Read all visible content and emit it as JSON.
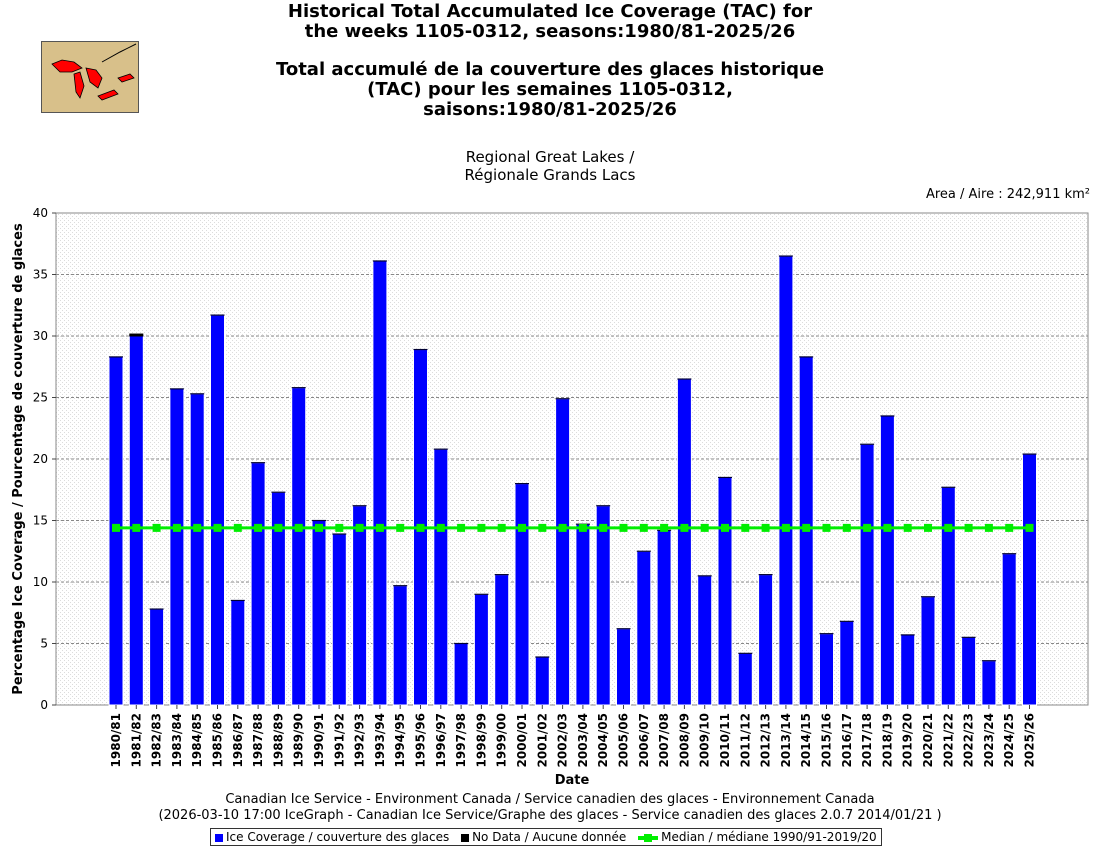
{
  "title_lines": [
    "Historical Total Accumulated Ice Coverage (TAC) for",
    "the weeks 1105-0312, seasons:1980/81-2025/26",
    "",
    "Total accumulé de la couverture des glaces historique",
    "(TAC) pour les semaines 1105-0312,",
    "saisons:1980/81-2025/26"
  ],
  "subtitle_lines": [
    "Regional Great Lakes /",
    "Régionale Grands Lacs"
  ],
  "area_text": "Area / Aire : 242,911 km²",
  "footer_lines": [
    "Canadian Ice Service - Environment Canada / Service canadien des glaces - Environnement Canada",
    "(2026-03-10 17:00 IceGraph - Canadian Ice Service/Graphe des glaces - Service canadien des glaces 2.0.7 2014/01/21 )"
  ],
  "legend": {
    "ice": "Ice Coverage / couverture des glaces",
    "nodata": "No Data / Aucune donnée",
    "median": "Median / médiane 1990/91-2019/20"
  },
  "colors": {
    "bar": "#0000ff",
    "nodata": "#000000",
    "median": "#00ee00",
    "map_land": "#d8c08a",
    "map_lakes": "#ff0000"
  },
  "chart_data": {
    "type": "bar",
    "xlabel": "Date",
    "ylabel": "Percentage Ice Coverage / Pourcentage de couverture de glaces",
    "ylim": [
      0,
      40
    ],
    "yticks": [
      0,
      5,
      10,
      15,
      20,
      25,
      30,
      35,
      40
    ],
    "grid": true,
    "legend_position": "bottom",
    "categories": [
      "1980/81",
      "1981/82",
      "1982/83",
      "1983/84",
      "1984/85",
      "1985/86",
      "1986/87",
      "1987/88",
      "1988/89",
      "1989/90",
      "1990/91",
      "1991/92",
      "1992/93",
      "1993/94",
      "1994/95",
      "1995/96",
      "1996/97",
      "1997/98",
      "1998/99",
      "1999/00",
      "2000/01",
      "2001/02",
      "2002/03",
      "2003/04",
      "2004/05",
      "2005/06",
      "2006/07",
      "2007/08",
      "2008/09",
      "2009/10",
      "2010/11",
      "2011/12",
      "2012/13",
      "2013/14",
      "2014/15",
      "2015/16",
      "2016/17",
      "2017/18",
      "2018/19",
      "2019/20",
      "2020/21",
      "2021/22",
      "2022/23",
      "2023/24",
      "2024/25",
      "2025/26"
    ],
    "series": [
      {
        "name": "Ice Coverage / couverture des glaces",
        "values": [
          28.3,
          30.0,
          7.8,
          25.7,
          25.3,
          31.7,
          8.5,
          19.7,
          17.3,
          25.8,
          15.0,
          13.9,
          16.2,
          36.1,
          9.7,
          28.9,
          20.8,
          5.0,
          9.0,
          10.6,
          18.0,
          3.9,
          24.9,
          14.7,
          16.2,
          6.2,
          12.5,
          14.2,
          26.5,
          10.5,
          18.5,
          4.2,
          10.6,
          36.5,
          28.3,
          5.8,
          6.8,
          21.2,
          23.5,
          5.7,
          8.8,
          17.7,
          5.5,
          3.6,
          12.3,
          20.4
        ]
      },
      {
        "name": "No Data / Aucune donnée",
        "values": [
          0,
          0.2,
          0,
          0,
          0,
          0,
          0,
          0,
          0,
          0,
          0,
          0,
          0,
          0,
          0,
          0,
          0,
          0,
          0,
          0,
          0,
          0,
          0,
          0,
          0,
          0,
          0,
          0,
          0,
          0,
          0,
          0,
          0,
          0,
          0,
          0,
          0,
          0,
          0,
          0,
          0,
          0,
          0,
          0,
          0,
          0
        ]
      },
      {
        "name": "Median / médiane 1990/91-2019/20",
        "values": [
          14.4,
          14.4,
          14.4,
          14.4,
          14.4,
          14.4,
          14.4,
          14.4,
          14.4,
          14.4,
          14.4,
          14.4,
          14.4,
          14.4,
          14.4,
          14.4,
          14.4,
          14.4,
          14.4,
          14.4,
          14.4,
          14.4,
          14.4,
          14.4,
          14.4,
          14.4,
          14.4,
          14.4,
          14.4,
          14.4,
          14.4,
          14.4,
          14.4,
          14.4,
          14.4,
          14.4,
          14.4,
          14.4,
          14.4,
          14.4,
          14.4,
          14.4,
          14.4,
          14.4,
          14.4,
          14.4
        ]
      }
    ]
  }
}
